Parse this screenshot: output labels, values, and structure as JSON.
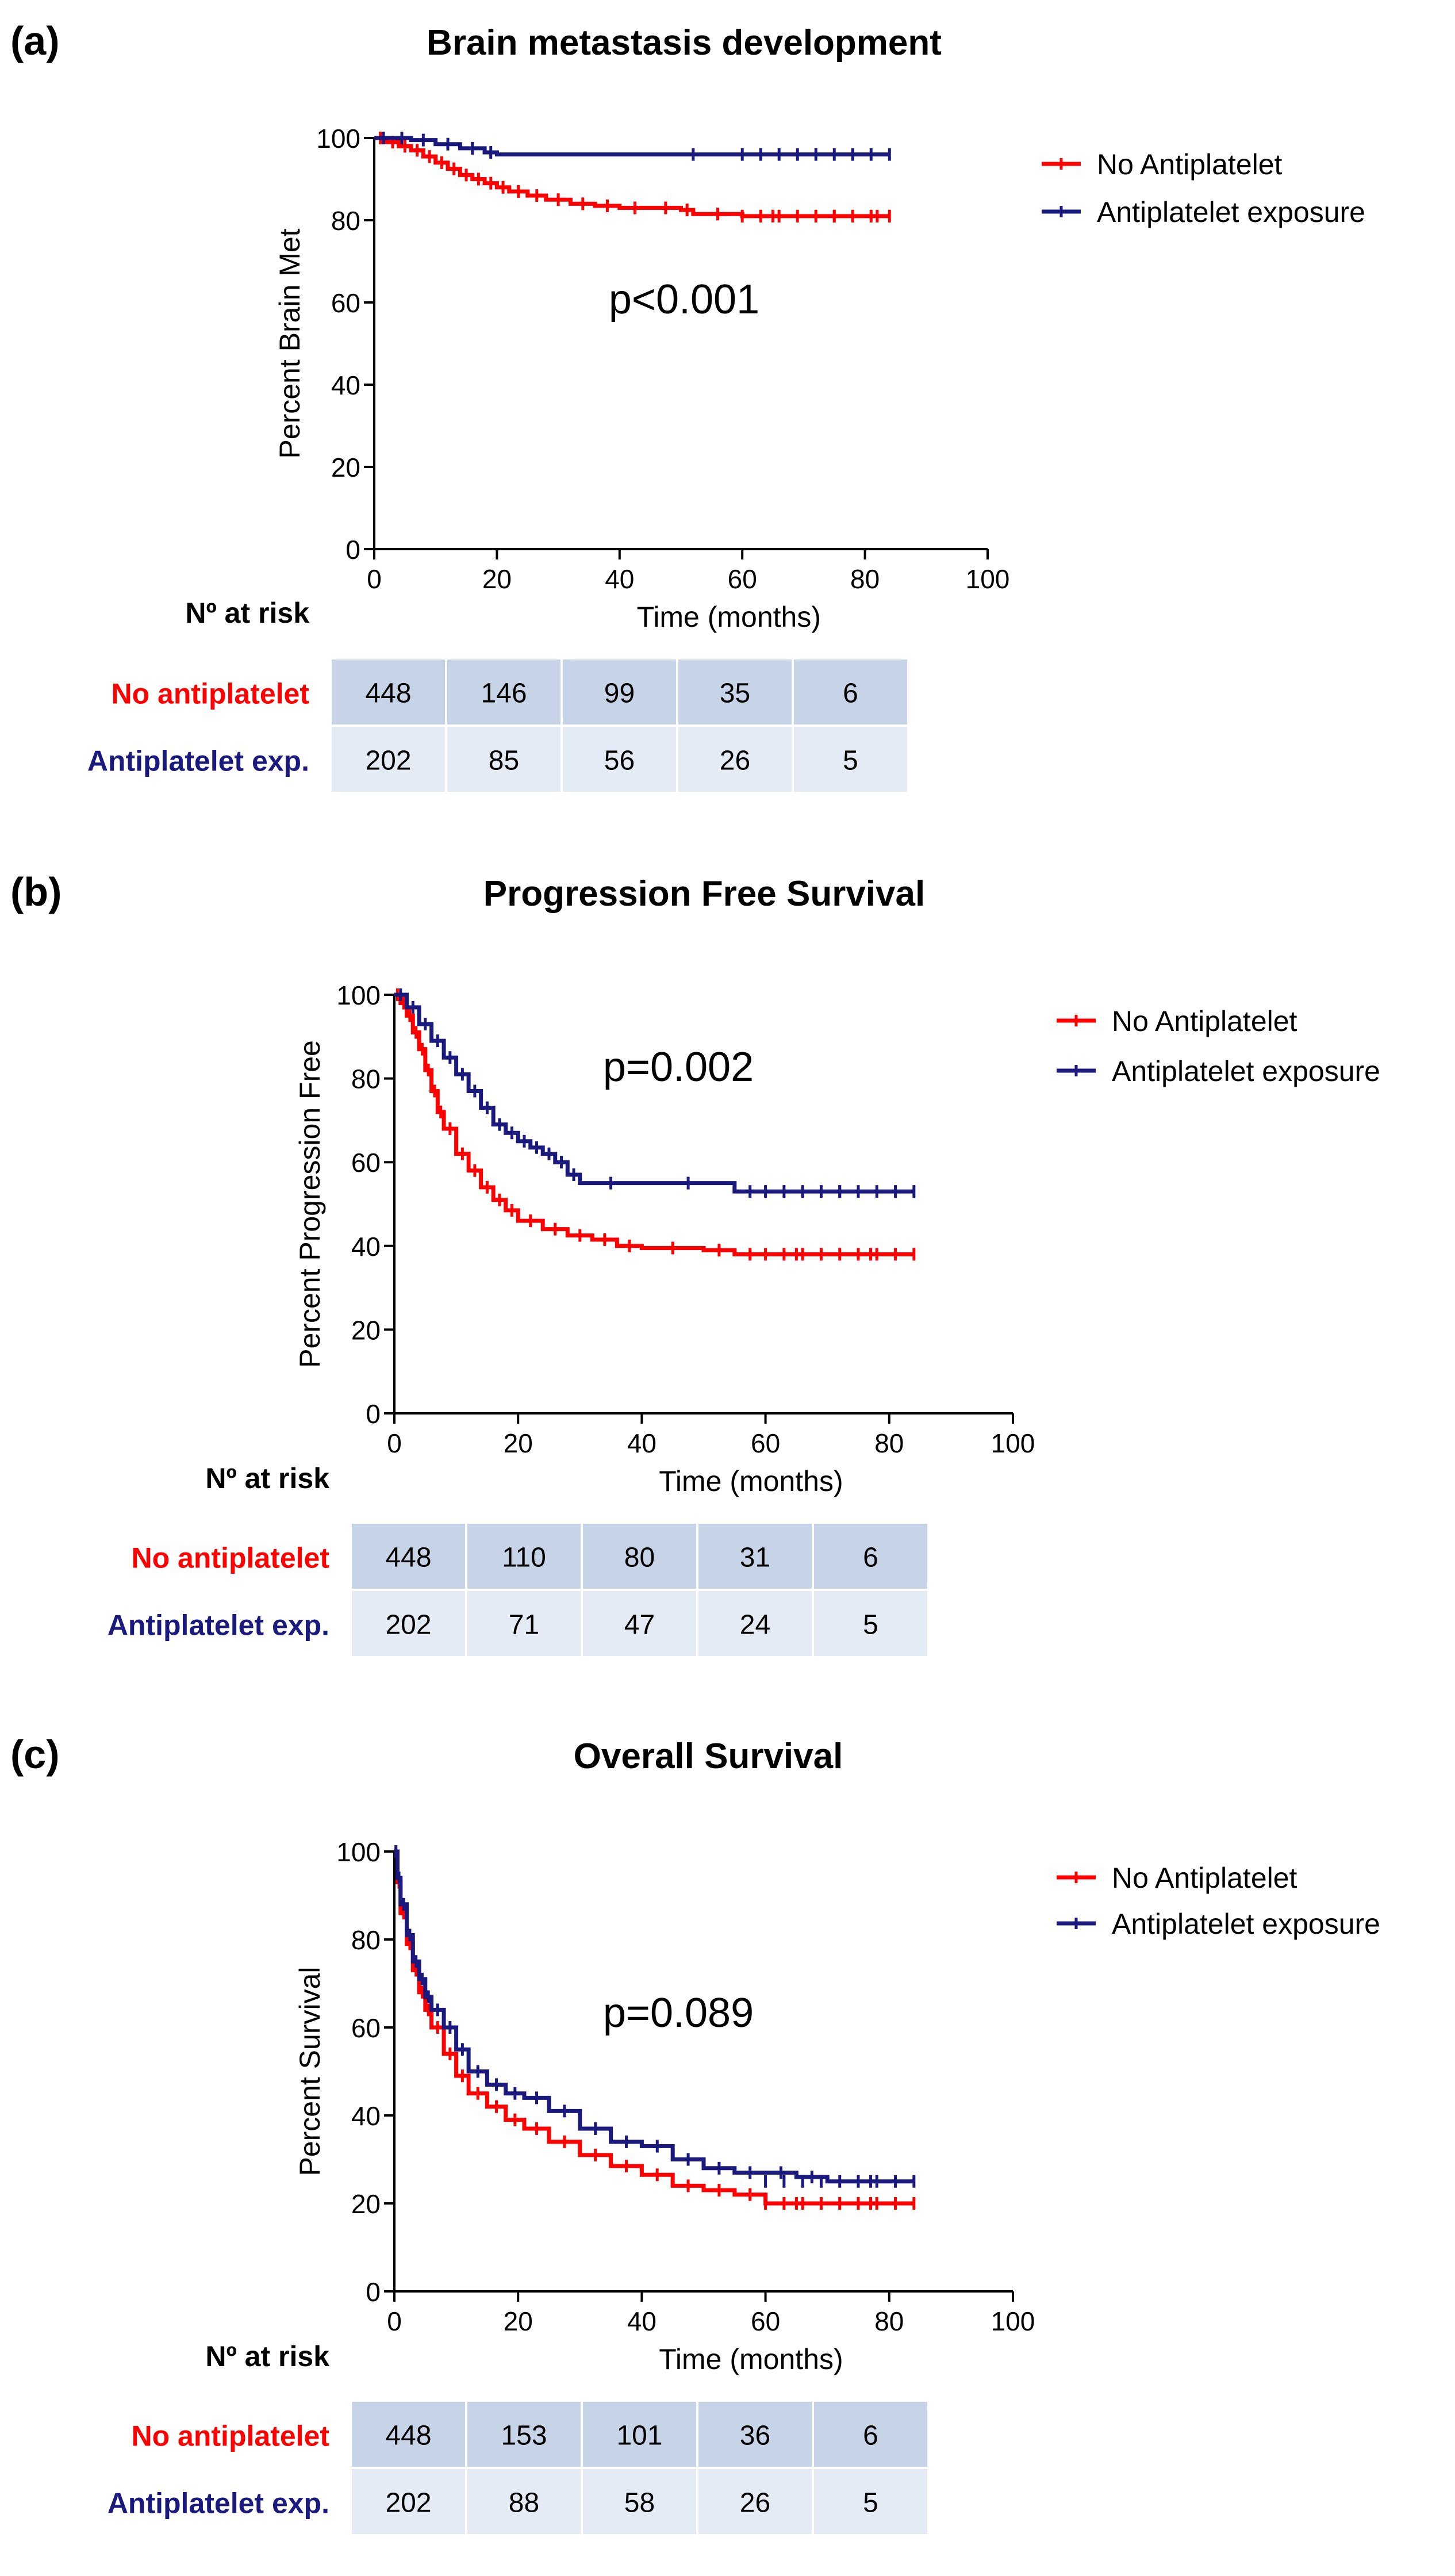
{
  "colors": {
    "red": "#ff0000",
    "navy": "#1a1a7e",
    "cell_dark": "#c7d3e6",
    "cell_light": "#e5ebf4",
    "axis": "#000000"
  },
  "chart_data": [
    {
      "type": "line",
      "panel_label": "(a)",
      "title": "Brain metastasis development",
      "xlabel": "Time (months)",
      "ylabel": "Percent Brain Met",
      "xlim": [
        0,
        100
      ],
      "ylim": [
        0,
        100
      ],
      "xticks": [
        "0",
        "20",
        "40",
        "60",
        "80",
        "100"
      ],
      "yticks": [
        "0",
        "20",
        "40",
        "60",
        "80",
        "100"
      ],
      "p_value": "p<0.001",
      "legend_position": "top-right",
      "series": [
        {
          "name": "No Antiplatelet",
          "color": "#ff0000",
          "x": [
            0,
            2,
            4,
            6,
            8,
            10,
            12,
            14,
            16,
            18,
            20,
            22,
            25,
            28,
            32,
            36,
            40,
            45,
            50,
            52,
            60,
            70,
            80,
            84
          ],
          "y": [
            100,
            99,
            98,
            97,
            95.5,
            94,
            92.5,
            91,
            90,
            89,
            88,
            87,
            86,
            85,
            84,
            83.5,
            83,
            83,
            82.5,
            81.5,
            81,
            81,
            81,
            81
          ]
        },
        {
          "name": "Antiplatelet exposure",
          "color": "#1a1a7e",
          "x": [
            0,
            3,
            6,
            10,
            14,
            18,
            20,
            84
          ],
          "y": [
            100,
            100,
            99.5,
            98.5,
            97.5,
            96.5,
            96,
            96
          ]
        }
      ],
      "at_risk": {
        "header": "Nº at risk",
        "rows": [
          {
            "label": "No antiplatelet",
            "values": [
              "448",
              "146",
              "99",
              "35",
              "6"
            ]
          },
          {
            "label": "Antiplatelet exp.",
            "values": [
              "202",
              "85",
              "56",
              "26",
              "5"
            ]
          }
        ]
      }
    },
    {
      "type": "line",
      "panel_label": "(b)",
      "title": "Progression Free Survival",
      "xlabel": "Time (months)",
      "ylabel": "Percent Progression Free",
      "xlim": [
        0,
        100
      ],
      "ylim": [
        0,
        100
      ],
      "xticks": [
        "0",
        "20",
        "40",
        "60",
        "80",
        "100"
      ],
      "yticks": [
        "0",
        "20",
        "40",
        "60",
        "80",
        "100"
      ],
      "p_value": "p=0.002",
      "legend_position": "top-right",
      "series": [
        {
          "name": "No Antiplatelet",
          "color": "#ff0000",
          "x": [
            0,
            1,
            2,
            3,
            4,
            5,
            6,
            7,
            8,
            10,
            12,
            14,
            16,
            18,
            20,
            24,
            28,
            32,
            36,
            40,
            50,
            55,
            60,
            70,
            84
          ],
          "y": [
            100,
            98,
            95,
            91,
            87,
            82,
            77,
            72,
            68,
            62,
            58,
            54,
            51,
            48.5,
            46,
            44,
            42.5,
            41.5,
            40,
            39.5,
            39,
            38,
            38,
            38,
            38
          ]
        },
        {
          "name": "Antiplatelet exposure",
          "color": "#1a1a7e",
          "x": [
            0,
            2,
            4,
            6,
            8,
            10,
            12,
            14,
            16,
            18,
            20,
            22,
            24,
            26,
            28,
            30,
            40,
            55,
            60,
            84
          ],
          "y": [
            100,
            97,
            93,
            89,
            85,
            81,
            77,
            73,
            69,
            67,
            65,
            63.5,
            62,
            60,
            57,
            55,
            55,
            53,
            53,
            53
          ]
        }
      ],
      "at_risk": {
        "header": "Nº at risk",
        "rows": [
          {
            "label": "No antiplatelet",
            "values": [
              "448",
              "110",
              "80",
              "31",
              "6"
            ]
          },
          {
            "label": "Antiplatelet exp.",
            "values": [
              "202",
              "71",
              "47",
              "24",
              "5"
            ]
          }
        ]
      }
    },
    {
      "type": "line",
      "panel_label": "(c)",
      "title": "Overall Survival",
      "xlabel": "Time (months)",
      "ylabel": "Percent Survival",
      "xlim": [
        0,
        100
      ],
      "ylim": [
        0,
        100
      ],
      "xticks": [
        "0",
        "20",
        "40",
        "60",
        "80",
        "100"
      ],
      "yticks": [
        "0",
        "20",
        "40",
        "60",
        "80",
        "100"
      ],
      "p_value": "p=0.089",
      "legend_position": "top-right",
      "series": [
        {
          "name": "No Antiplatelet",
          "color": "#ff0000",
          "x": [
            0,
            0.5,
            1,
            2,
            3,
            4,
            5,
            6,
            8,
            10,
            12,
            15,
            18,
            21,
            25,
            30,
            35,
            40,
            45,
            50,
            55,
            60,
            70,
            84
          ],
          "y": [
            100,
            93,
            86,
            79,
            73,
            68,
            64,
            60,
            54,
            49,
            45,
            42,
            39,
            37,
            34,
            31,
            28.5,
            26.5,
            24,
            23,
            22,
            20,
            20,
            20
          ]
        },
        {
          "name": "Antiplatelet exposure",
          "color": "#1a1a7e",
          "x": [
            0,
            0.5,
            1,
            2,
            3,
            4,
            5,
            6,
            8,
            10,
            12,
            15,
            18,
            21,
            25,
            30,
            35,
            40,
            45,
            50,
            55,
            60,
            65,
            70,
            84
          ],
          "y": [
            100,
            94,
            88,
            81,
            75,
            71,
            67,
            64,
            60,
            55,
            50,
            47,
            45,
            44,
            41,
            37,
            34,
            33,
            30,
            28,
            27,
            27,
            26,
            25,
            25
          ]
        }
      ],
      "at_risk": {
        "header": "Nº at risk",
        "rows": [
          {
            "label": "No antiplatelet",
            "values": [
              "448",
              "153",
              "101",
              "36",
              "6"
            ]
          },
          {
            "label": "Antiplatelet exp.",
            "values": [
              "202",
              "88",
              "58",
              "26",
              "5"
            ]
          }
        ]
      }
    }
  ]
}
